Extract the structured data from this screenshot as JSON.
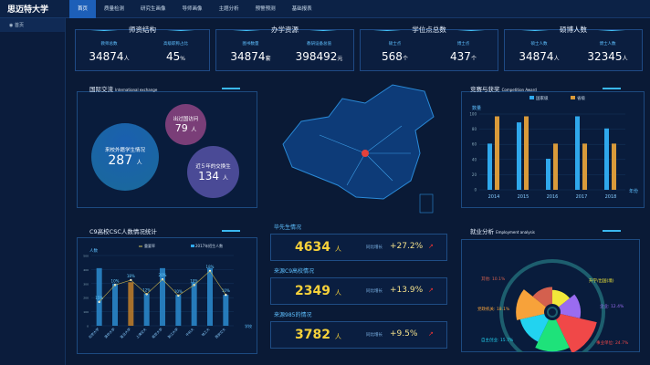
{
  "app": {
    "logo": "思迈特大学"
  },
  "nav": [
    "首页",
    "质量检测",
    "研究生画像",
    "导师画像",
    "主题分析",
    "预警预测",
    "基础报表"
  ],
  "sidebar": {
    "items": [
      {
        "label": "◉ 首页"
      }
    ]
  },
  "cards": [
    {
      "title": "师资结构",
      "items": [
        {
          "label": "教师总数",
          "value": "34874",
          "unit": "人"
        },
        {
          "label": "高级职称占比",
          "value": "45",
          "unit": "%"
        }
      ]
    },
    {
      "title": "办学资源",
      "items": [
        {
          "label": "图书数量",
          "value": "34874",
          "unit": "套"
        },
        {
          "label": "教研设备总值",
          "value": "398492",
          "unit": "元"
        }
      ]
    },
    {
      "title": "学位点总数",
      "items": [
        {
          "label": "硕士点",
          "value": "568",
          "unit": "个"
        },
        {
          "label": "博士点",
          "value": "437",
          "unit": "个"
        }
      ]
    },
    {
      "title": "硕博人数",
      "items": [
        {
          "label": "硕士人数",
          "value": "34874",
          "unit": "人"
        },
        {
          "label": "博士人数",
          "value": "32345",
          "unit": "人"
        }
      ]
    }
  ],
  "exchange": {
    "title": "国际交流",
    "subtitle": "International exchange",
    "bubbles": [
      {
        "label": "来校外籍学生情况",
        "value": "287",
        "unit": "人"
      },
      {
        "label": "出过国访问",
        "value": "79",
        "unit": "人"
      },
      {
        "label": "近５年的交换生",
        "value": "134",
        "unit": "人"
      }
    ]
  },
  "kpis": [
    {
      "title": "毕先生情况",
      "value": "4634",
      "unit": "人",
      "growth_label": "同比增长",
      "growth": "+27.2%"
    },
    {
      "title": "来源C9高校情况",
      "value": "2349",
      "unit": "人",
      "growth_label": "同比增长",
      "growth": "+13.9%"
    },
    {
      "title": "来源985的情况",
      "value": "3782",
      "unit": "人",
      "growth_label": "同比增长",
      "growth": "+9.5%"
    }
  ],
  "colors": {
    "accent": "#3ab8f0",
    "kpi": "#f6d13a",
    "series1": "#2fa8ec",
    "series2": "#d99a3a"
  },
  "chart_data": [
    {
      "type": "bar",
      "title": "竞赛与获奖",
      "subtitle": "Competition Award",
      "categories": [
        "2014",
        "2015",
        "2016",
        "2017",
        "2018"
      ],
      "series": [
        {
          "name": "国家级",
          "values": [
            61,
            89,
            41,
            97,
            81
          ]
        },
        {
          "name": "省级",
          "values": [
            97,
            97,
            61,
            61,
            61
          ]
        }
      ],
      "ylabel": "数量",
      "xlabel": "年份",
      "ylim": [
        0,
        100
      ],
      "yticks": [
        0,
        20,
        40,
        60,
        80,
        100
      ],
      "legend": "top"
    },
    {
      "type": "bar",
      "title": "C9高校CSC人数情况统计",
      "categories": [
        "北京大学",
        "清华大学",
        "复旦大学",
        "上海交大",
        "南京大学",
        "浙江大学",
        "中科大",
        "哈工大",
        "西安交大"
      ],
      "series": [
        {
          "name": "2017年招生人数",
          "values": [
            410,
            300,
            310,
            230,
            410,
            220,
            310,
            410,
            220
          ]
        },
        {
          "name": "重要率",
          "type": "line",
          "values": [
            170,
            290,
            325,
            225,
            330,
            215,
            290,
            390,
            220
          ],
          "labels": [
            "15%",
            "10%",
            "18%",
            "12%",
            "20%",
            "10%",
            "10%",
            "18%",
            "10%"
          ]
        }
      ],
      "ylabel": "人数",
      "xlabel": "学校",
      "ylim": [
        0,
        500
      ],
      "yticks": [
        0,
        100,
        200,
        300,
        400,
        500
      ],
      "legend": "top"
    },
    {
      "type": "pie",
      "title": "就业分析",
      "subtitle": "Employment analysis",
      "rose": true,
      "slices": [
        {
          "name": "升学/出国(境)",
          "value": 8,
          "color": "#f2e83a"
        },
        {
          "name": "企业",
          "value": 12.4,
          "color": "#9a6cf0"
        },
        {
          "name": "事业单位",
          "value": 24.7,
          "color": "#f04848"
        },
        {
          "name": "国家地方项目",
          "value": 20.3,
          "color": "#1ee27a"
        },
        {
          "name": "自主创业",
          "value": 15.7,
          "color": "#22d3f0"
        },
        {
          "name": "党政机关",
          "value": 18.1,
          "color": "#f7a23a"
        },
        {
          "name": "其他",
          "value": 10.1,
          "color": "#d4604e"
        }
      ],
      "labels": [
        "升学/出国(境)",
        "企业: 12.4%",
        "事业单位: 24.7%",
        "国家地方项目: 20.3%",
        "自主创业: 15.7%",
        "党政机关: 18.1%",
        "其他: 10.1%"
      ]
    }
  ]
}
